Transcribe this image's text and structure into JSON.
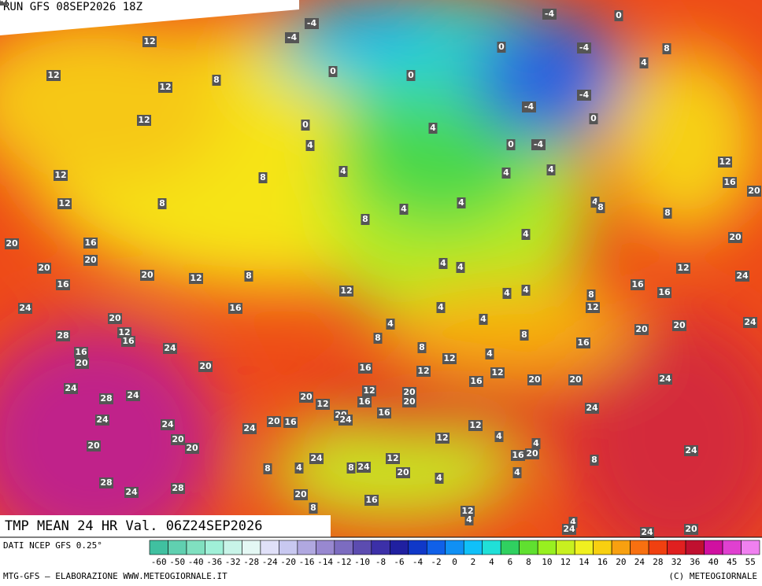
{
  "header": {
    "run": "RUN GFS 08SEP2026 18Z"
  },
  "map": {
    "title": "TMP MEAN 24 HR Val. 06Z24SEP2026",
    "labels": [
      12,
      12,
      12,
      12,
      8,
      12,
      12,
      16,
      20,
      20,
      20,
      16,
      20,
      12,
      8,
      16,
      24,
      28,
      20,
      12,
      16,
      24,
      20,
      16,
      20,
      24,
      28,
      24,
      24,
      24,
      20,
      20,
      20,
      28,
      24,
      28,
      -4,
      -4,
      0,
      0,
      0,
      0,
      -4,
      -4,
      -4,
      -4,
      -4,
      0,
      0,
      0,
      4,
      8,
      4,
      4,
      4,
      8,
      8,
      8,
      4,
      4,
      4,
      4,
      4,
      8,
      8,
      12,
      16,
      20,
      20,
      24,
      12,
      16,
      16,
      24,
      20,
      20,
      16,
      12,
      8,
      4,
      4,
      4,
      4,
      4,
      4,
      4,
      4,
      4,
      8,
      8,
      12,
      4,
      8,
      12,
      16,
      12,
      16,
      12,
      20,
      20,
      24,
      24,
      12,
      20,
      20,
      16,
      16,
      20,
      12,
      20,
      24,
      24,
      20,
      16,
      12,
      12,
      4,
      20,
      16,
      8,
      24,
      24,
      12,
      8,
      24,
      20,
      4,
      4,
      4,
      8,
      20,
      16,
      8,
      12,
      4,
      4,
      24,
      20,
      24,
      24
    ]
  },
  "footer": {
    "source": "DATI NCEP GFS 0.25°",
    "credit": "MTG-GFS — ELABORAZIONE WWW.METEOGIORNALE.IT",
    "copyright": "(C) METEOGIORNALE",
    "scale": [
      "-60",
      "-50",
      "-40",
      "-36",
      "-32",
      "-28",
      "-24",
      "-20",
      "-16",
      "-14",
      "-12",
      "-10",
      "-8",
      "-6",
      "-4",
      "-2",
      "0",
      "2",
      "4",
      "6",
      "8",
      "10",
      "12",
      "14",
      "16",
      "20",
      "24",
      "28",
      "32",
      "36",
      "40",
      "45",
      "55"
    ],
    "colors": [
      "#40c0a0",
      "#60d0b0",
      "#80e0c0",
      "#a0f0d8",
      "#c8f4e8",
      "#e4f8f4",
      "#e0e0f8",
      "#c8c8f0",
      "#b0a8e0",
      "#9888d0",
      "#7c6cc0",
      "#5c4cb0",
      "#3c30a8",
      "#2020a0",
      "#1038c8",
      "#1060e8",
      "#1090f4",
      "#10c0f8",
      "#20e0d8",
      "#30d060",
      "#60e030",
      "#98f020",
      "#c8f020",
      "#f0f020",
      "#f8d010",
      "#f8a010",
      "#f87010",
      "#f04010",
      "#e02020",
      "#c01030",
      "#d010a0",
      "#e040d0",
      "#f080f0"
    ]
  }
}
